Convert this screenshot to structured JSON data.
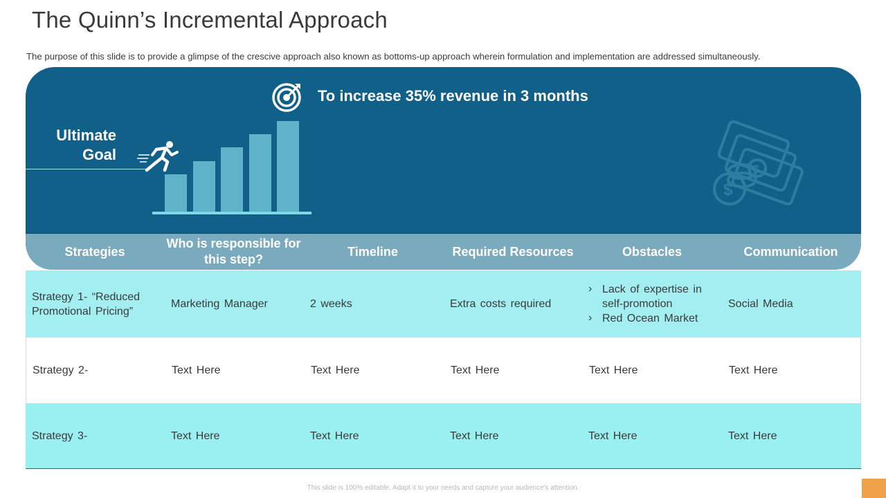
{
  "title": "The Quinn’s Incremental Approach",
  "subtitle": "The purpose of this slide is to provide a glimpse of the crescive approach also known as bottoms-up approach wherein formulation and implementation are addressed simultaneously.",
  "banner": {
    "goal_text": "To increase 35%  revenue in 3 months",
    "ultimate_line1": "Ultimate",
    "ultimate_line2": "Goal"
  },
  "table": {
    "headers": [
      "Strategies",
      "Who is responsible for this step?",
      "Timeline",
      "Required Resources",
      "Obstacles",
      "Communication"
    ],
    "rows": [
      {
        "strategy": "Strategy 1- “Reduced Promotional Pricing”",
        "responsible": "Marketing  Manager",
        "timeline": "2 weeks",
        "resources": "Extra costs  required",
        "obstacles": [
          "Lack of expertise  in self-promotion",
          "Red  Ocean  Market"
        ],
        "communication": "Social Media"
      },
      {
        "strategy": "Strategy 2-",
        "responsible": "Text  Here",
        "timeline": "Text  Here",
        "resources": "Text  Here",
        "obstacles_text": "Text  Here",
        "communication": "Text  Here"
      },
      {
        "strategy": "Strategy 3-",
        "responsible": "Text  Here",
        "timeline": "Text  Here",
        "resources": "Text  Here",
        "obstacles_text": "Text  Here",
        "communication": "Text  Here"
      }
    ]
  },
  "footer": "This slide is 100% editable. Adapt it to your needs and capture your audience's attention.",
  "colors": {
    "panel": "#11608a",
    "header_row": "#7aaabd",
    "teal_row": "#a3eef0",
    "bars": "#5fb3c9",
    "accent": "#f0a24a"
  },
  "icons": [
    "target-icon",
    "runner-icon",
    "money-stack-icon"
  ]
}
